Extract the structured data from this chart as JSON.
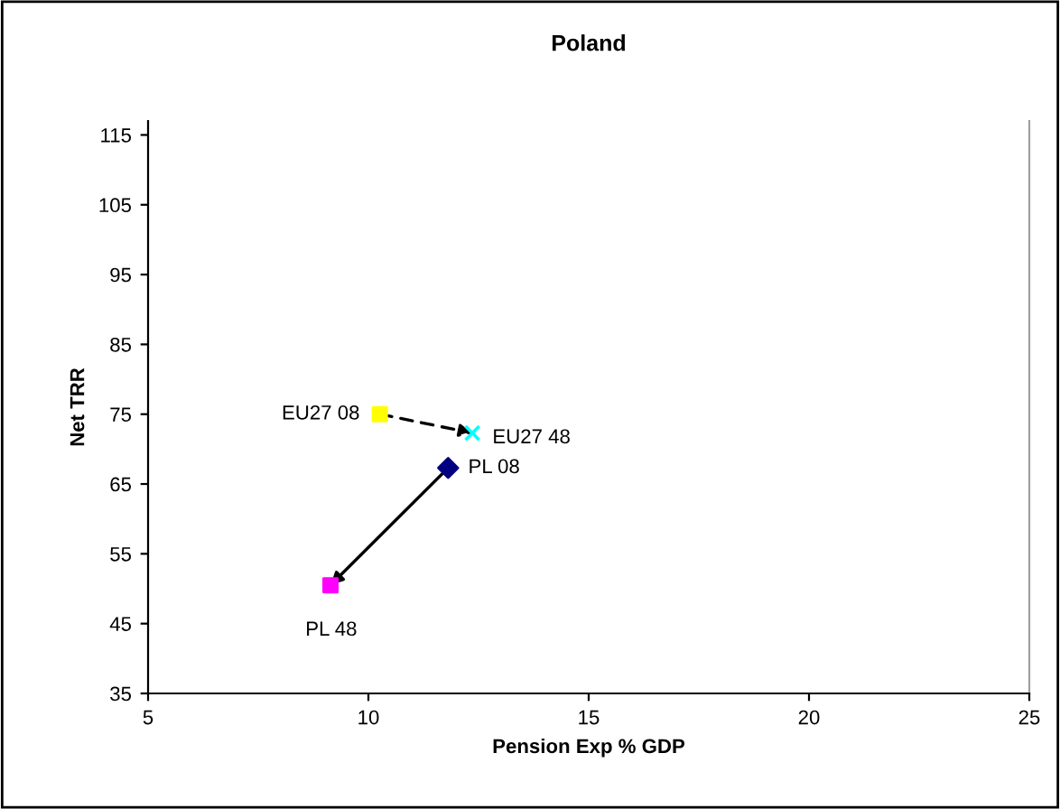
{
  "chart_data": {
    "type": "scatter",
    "title": "Poland",
    "xlabel": "Pension Exp % GDP",
    "ylabel": "Net TRR",
    "xlim": [
      5,
      25
    ],
    "xticks": [
      5,
      10,
      15,
      20,
      25
    ],
    "ylim": [
      35,
      117
    ],
    "yticks": [
      35,
      45,
      55,
      65,
      75,
      85,
      95,
      105,
      115
    ],
    "grid": false,
    "legend": false,
    "series": [
      {
        "type": "line",
        "x": [
          10.26,
          12.36
        ],
        "values": [
          75,
          72.3
        ],
        "color": "#000000",
        "line_style": "dashed",
        "marker": "none"
      },
      {
        "type": "line",
        "x": [
          11.81,
          9.14
        ],
        "values": [
          67.3,
          50.5
        ],
        "color": "#000000",
        "line_style": "solid",
        "marker": "none"
      },
      {
        "x": [
          10.26
        ],
        "values": [
          75
        ],
        "color": "#ffff00",
        "marker": "square"
      },
      {
        "x": [
          12.36
        ],
        "values": [
          72.3
        ],
        "color": "#00ffff",
        "marker": "cross"
      },
      {
        "x": [
          11.81
        ],
        "values": [
          67.3
        ],
        "color": "#000080",
        "marker": "diamond"
      },
      {
        "x": [
          9.14
        ],
        "values": [
          50.5
        ],
        "color": "#ff00ff",
        "marker": "square"
      }
    ],
    "annotations": [
      {
        "text": "EU27 08",
        "x": 10.26,
        "y": 75
      },
      {
        "text": "EU27 48",
        "x": 12.36,
        "y": 72.3
      },
      {
        "text": "PL 08",
        "x": 11.81,
        "y": 67.3
      },
      {
        "text": "PL 48",
        "x": 9.14,
        "y": 50.5
      }
    ]
  }
}
